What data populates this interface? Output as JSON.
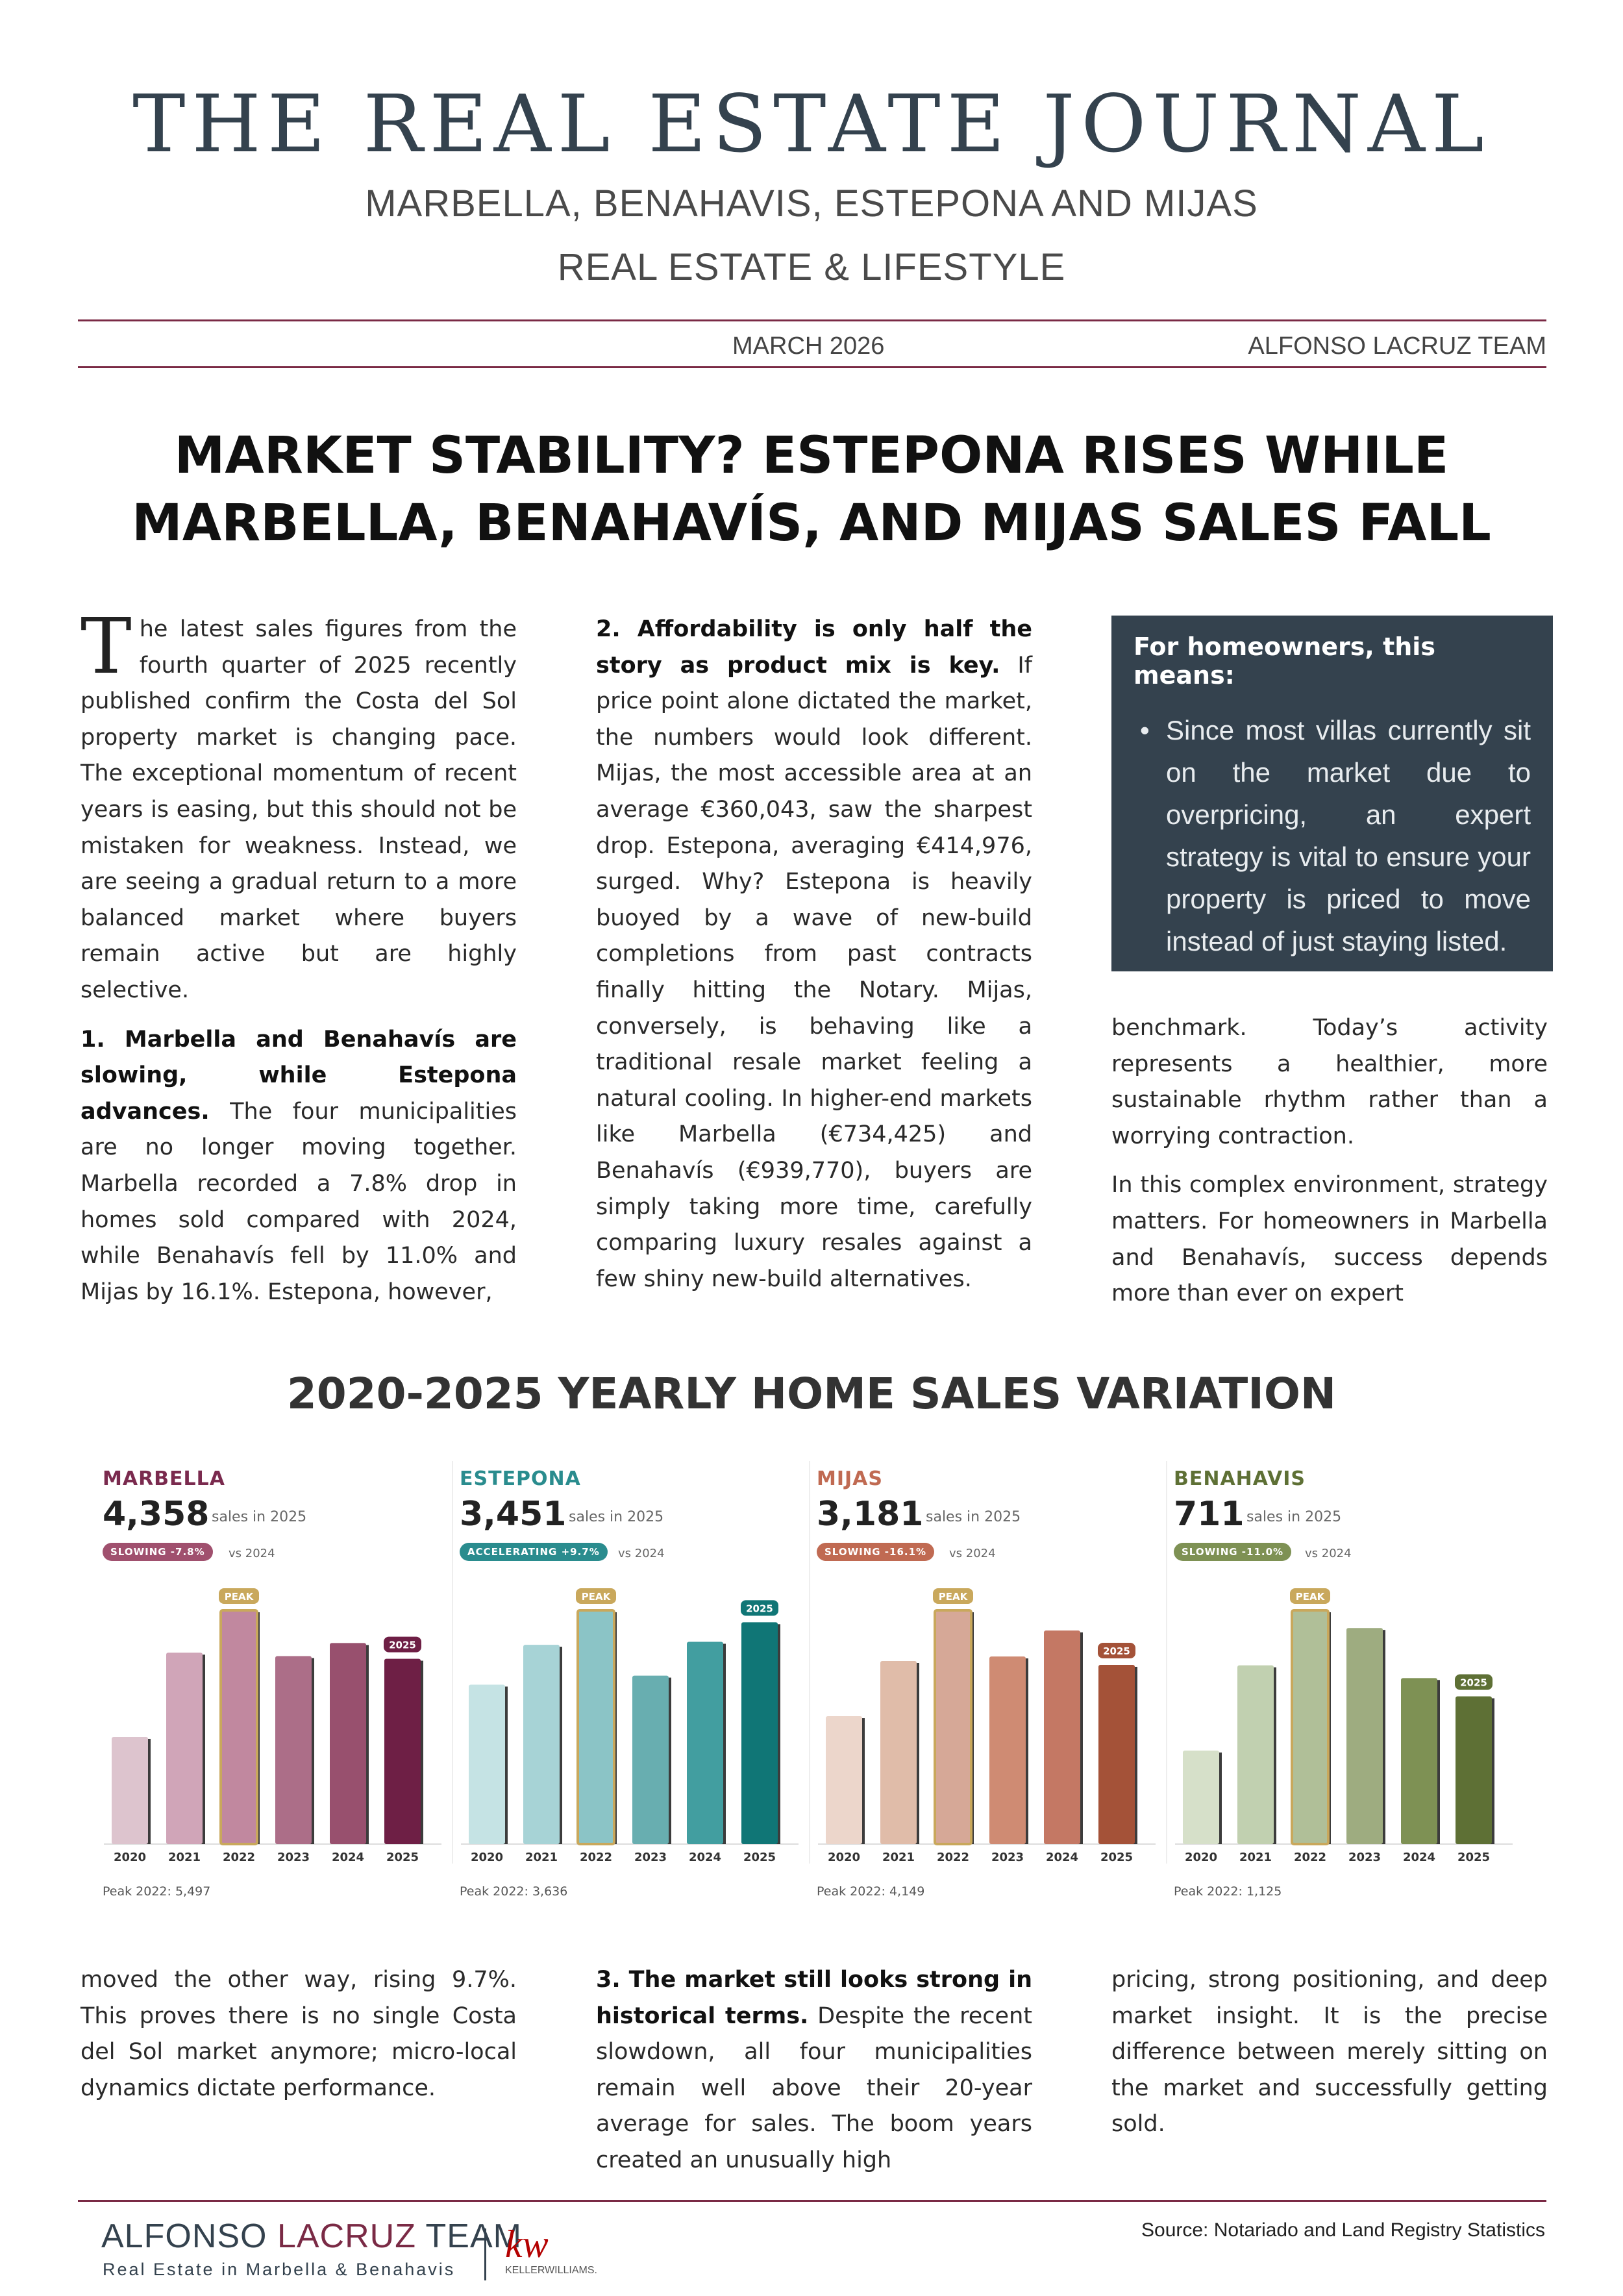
{
  "masthead": {
    "title": "THE REAL ESTATE JOURNAL",
    "subtitle_1": "MARBELLA, BENAHAVIS, ESTEPONA AND MIJAS",
    "subtitle_2": "REAL ESTATE & LIFESTYLE",
    "date": "MARCH 2026",
    "team": "ALFONSO LACRUZ TEAM"
  },
  "headline": {
    "line_1": "MARKET STABILITY? ESTEPONA RISES WHILE",
    "line_2": "MARBELLA, BENAHAVÍS, AND MIJAS SALES FALL"
  },
  "article_top": {
    "col1_dropcap": "T",
    "col1_intro": "he latest sales figures from the fourth quarter of 2025 recently published confirm the Costa del Sol property market is changing pace. The exceptional momentum of recent years is easing, but this should not be mistaken for weakness. Instead, we are seeing a gradual return to a more balanced market where buyers remain active but are highly selective.",
    "col1_h1": "1. Marbella and Benahavís are slowing, while Estepona advances.",
    "col1_p1": "The four municipalities are no longer moving together. Marbella recorded a 7.8% drop in homes sold compared with 2024, while Benahavís fell by 11.0% and Mijas by 16.1%. Estepona, however,",
    "col2_h2": "2. Affordability is only half the story as product mix is key.",
    "col2_p2": "If price point alone dictated the market, the numbers would look different. Mijas, the most accessible area at an average €360,043, saw the sharpest drop. Estepona, averaging €414,976, surged. Why? Estepona is heavily buoyed by a wave of new-build completions from past contracts finally hitting the Notary. Mijas, conversely, is behaving like a traditional resale market feeling a natural cooling. In higher-end markets like Marbella (€734,425) and Benahavís (€939,770), buyers are simply taking more time, carefully comparing luxury resales against a few shiny new-build alternatives.",
    "col3_p1": "benchmark. Today’s activity represents a healthier, more sustainable rhythm rather than a worrying contraction.",
    "col3_p2": "In this complex environment, strategy matters. For homeowners in Marbella and Benahavís, success depends more than ever on expert"
  },
  "callout": {
    "title": "For homeowners, this means:",
    "bullet": "•",
    "text": "Since most villas currently sit on the market due to overpricing, an expert strategy is vital to ensure your property is priced to move instead of just staying listed."
  },
  "section_title": "2020-2025 YEARLY HOME SALES VARIATION",
  "chart_data": [
    {
      "type": "bar",
      "title": "MARBELLA",
      "total": "4,358",
      "total_label": "sales in 2025",
      "badge": "SLOWING -7.8%",
      "badge_note": "vs 2024",
      "peak_label": "PEAK",
      "current_label": "2025",
      "peak_note": "Peak 2022: 5,497",
      "categories": [
        "2020",
        "2021",
        "2022",
        "2023",
        "2024",
        "2025"
      ],
      "values": [
        2520,
        4500,
        5497,
        4420,
        4727,
        4358
      ],
      "ylim": [
        0,
        5497
      ],
      "colors": [
        "#ddc4ce",
        "#d0a5b8",
        "#c1889f",
        "#ac6e88",
        "#98506e",
        "#6e1f45"
      ],
      "accent": "#7a2a4e",
      "badge_color": "#a0506e",
      "peak_index": 2,
      "current_index": 5
    },
    {
      "type": "bar",
      "title": "ESTEPONA",
      "total": "3,451",
      "total_label": "sales in 2025",
      "badge": "ACCELERATING +9.7%",
      "badge_note": "vs 2024",
      "peak_label": "PEAK",
      "current_label": "2025",
      "peak_note": "Peak 2022: 3,636",
      "categories": [
        "2020",
        "2021",
        "2022",
        "2023",
        "2024",
        "2025"
      ],
      "values": [
        2480,
        3100,
        3636,
        2620,
        3146,
        3451
      ],
      "ylim": [
        0,
        3636
      ],
      "colors": [
        "#c5e3e4",
        "#a7d3d6",
        "#8bc4c6",
        "#68aeb0",
        "#429ea0",
        "#107676"
      ],
      "accent": "#2a8c8e",
      "badge_color": "#2a8c8e",
      "peak_index": 2,
      "current_index": 5
    },
    {
      "type": "bar",
      "title": "MIJAS",
      "total": "3,181",
      "total_label": "sales in 2025",
      "badge": "SLOWING -16.1%",
      "badge_note": "vs 2024",
      "peak_label": "PEAK",
      "current_label": "2025",
      "peak_note": "Peak 2022: 4,149",
      "categories": [
        "2020",
        "2021",
        "2022",
        "2023",
        "2024",
        "2025"
      ],
      "values": [
        2270,
        3250,
        4149,
        3330,
        3791,
        3181
      ],
      "ylim": [
        0,
        4149
      ],
      "colors": [
        "#ecd6cb",
        "#e0bca9",
        "#d6a897",
        "#cf8b73",
        "#c47864",
        "#a45238"
      ],
      "accent": "#c06a52",
      "badge_color": "#c06a52",
      "peak_index": 2,
      "current_index": 5
    },
    {
      "type": "bar",
      "title": "BENAHAVIS",
      "total": "711",
      "total_label": "sales in 2025",
      "badge": "SLOWING -11.0%",
      "badge_note": "vs 2024",
      "peak_label": "PEAK",
      "current_label": "2025",
      "peak_note": "Peak 2022: 1,125",
      "categories": [
        "2020",
        "2021",
        "2022",
        "2023",
        "2024",
        "2025"
      ],
      "values": [
        450,
        860,
        1125,
        1040,
        799,
        711
      ],
      "ylim": [
        0,
        1125
      ],
      "colors": [
        "#d6e0c9",
        "#c1d0b0",
        "#b0bf98",
        "#9eac80",
        "#7e9154",
        "#5e7035"
      ],
      "accent": "#5e7035",
      "badge_color": "#7e9154",
      "peak_index": 2,
      "current_index": 5
    }
  ],
  "article_bottom": {
    "col1": "moved the other way, rising 9.7%. This proves there is no single Costa del Sol market anymore; micro-local dynamics dictate performance.",
    "col2_h3": "3. The market still looks strong in historical terms.",
    "col2_p3": "Despite the recent slowdown, all four municipalities remain well above their 20-year average for sales. The boom years created an unusually high",
    "col3": "pricing, strong positioning, and deep market insight. It is the precise difference between merely sitting on the market and successfully getting sold."
  },
  "footer": {
    "logo_name_1": "ALFONSO ",
    "logo_name_2": "LACRUZ",
    "logo_name_3": " TEAM",
    "logo_tagline": "Real Estate in Marbella & Benahavis",
    "kw_mark": "kw",
    "kw_text": "KELLERWILLIAMS.",
    "source": "Source: Notariado and Land Registry Statistics"
  }
}
